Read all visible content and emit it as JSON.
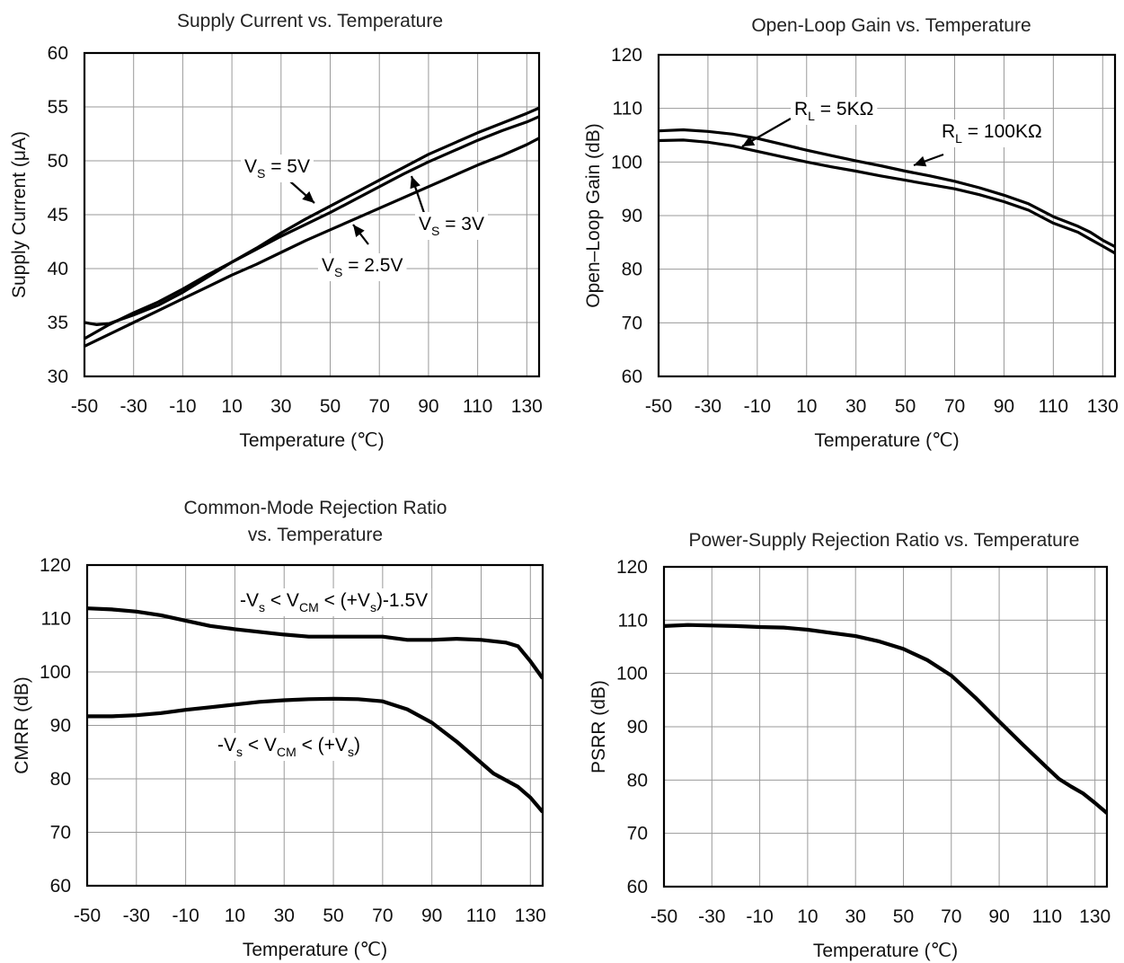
{
  "chart_data": [
    {
      "type": "line",
      "title": "Supply Current vs. Temperature",
      "xlabel": "Temperature (℃)",
      "ylabel": "Supply Current (μA)",
      "xlim": [
        -50,
        135
      ],
      "ylim": [
        30,
        60
      ],
      "xticks": [
        "-50",
        "-30",
        "-10",
        "10",
        "30",
        "50",
        "70",
        "90",
        "110",
        "130"
      ],
      "yticks": [
        "30",
        "35",
        "40",
        "45",
        "50",
        "55",
        "60"
      ],
      "grid": true,
      "series": [
        {
          "name": "VS = 5V",
          "x": [
            -50,
            -45,
            -40,
            -30,
            -20,
            -10,
            0,
            10,
            20,
            30,
            40,
            50,
            60,
            70,
            80,
            90,
            100,
            110,
            120,
            130,
            135
          ],
          "y": [
            35.0,
            34.8,
            34.9,
            35.7,
            36.6,
            37.8,
            39.2,
            40.6,
            41.9,
            43.3,
            44.6,
            45.8,
            47.0,
            48.2,
            49.4,
            50.6,
            51.6,
            52.6,
            53.5,
            54.4,
            54.9
          ]
        },
        {
          "name": "VS = 3V",
          "x": [
            -50,
            -40,
            -30,
            -20,
            -10,
            0,
            10,
            20,
            30,
            40,
            50,
            60,
            70,
            80,
            90,
            100,
            110,
            120,
            130,
            135
          ],
          "y": [
            33.5,
            34.8,
            35.9,
            36.9,
            38.1,
            39.4,
            40.6,
            41.8,
            43.0,
            44.1,
            45.2,
            46.4,
            47.6,
            48.8,
            49.9,
            50.9,
            51.9,
            52.8,
            53.6,
            54.1
          ]
        },
        {
          "name": "VS = 2.5V",
          "x": [
            -50,
            -40,
            -30,
            -20,
            -10,
            0,
            10,
            20,
            30,
            40,
            50,
            60,
            70,
            80,
            90,
            100,
            110,
            120,
            130,
            135
          ],
          "y": [
            32.8,
            33.9,
            35.0,
            36.1,
            37.2,
            38.3,
            39.4,
            40.4,
            41.5,
            42.6,
            43.6,
            44.6,
            45.6,
            46.6,
            47.6,
            48.6,
            49.6,
            50.5,
            51.5,
            52.1
          ]
        }
      ],
      "annotations": [
        {
          "main": "V",
          "sub": "S",
          "rest": " = 5V"
        },
        {
          "main": "V",
          "sub": "S",
          "rest": " = 3V"
        },
        {
          "main": "V",
          "sub": "S",
          "rest": " = 2.5V"
        }
      ]
    },
    {
      "type": "line",
      "title": "Open-Loop Gain vs. Temperature",
      "xlabel": "Temperature (℃)",
      "ylabel": "Open–Loop Gain (dB)",
      "xlim": [
        -50,
        135
      ],
      "ylim": [
        60,
        120
      ],
      "xticks": [
        "-50",
        "-30",
        "-10",
        "10",
        "30",
        "50",
        "70",
        "90",
        "110",
        "130"
      ],
      "yticks": [
        "60",
        "70",
        "80",
        "90",
        "100",
        "110",
        "120"
      ],
      "grid": true,
      "series": [
        {
          "name": "RL = 100KΩ",
          "x": [
            -50,
            -40,
            -30,
            -20,
            -10,
            0,
            10,
            20,
            30,
            40,
            50,
            60,
            70,
            80,
            90,
            100,
            110,
            120,
            125,
            130,
            135
          ],
          "y": [
            105.8,
            106.0,
            105.7,
            105.2,
            104.4,
            103.3,
            102.2,
            101.2,
            100.2,
            99.3,
            98.3,
            97.4,
            96.4,
            95.2,
            93.8,
            92.2,
            89.8,
            88.0,
            86.9,
            85.4,
            84.2
          ]
        },
        {
          "name": "RL = 5KΩ",
          "x": [
            -50,
            -40,
            -30,
            -20,
            -10,
            0,
            10,
            20,
            30,
            40,
            50,
            60,
            70,
            80,
            90,
            100,
            110,
            120,
            125,
            130,
            135
          ],
          "y": [
            104.0,
            104.1,
            103.7,
            103.0,
            102.0,
            101.0,
            100.0,
            99.1,
            98.3,
            97.4,
            96.6,
            95.8,
            95.0,
            93.9,
            92.6,
            91.0,
            88.6,
            86.9,
            85.6,
            84.3,
            83.0
          ]
        }
      ],
      "annotations": [
        {
          "main": "R",
          "sub": "L",
          "rest": " = 5KΩ"
        },
        {
          "main": "R",
          "sub": "L",
          "rest": " = 100KΩ"
        }
      ]
    },
    {
      "type": "line",
      "title": "Common-Mode Rejection Ratio",
      "title2": "vs. Temperature",
      "xlabel": "Temperature (℃)",
      "ylabel": "CMRR (dB)",
      "xlim": [
        -50,
        135
      ],
      "ylim": [
        60,
        120
      ],
      "xticks": [
        "-50",
        "-30",
        "-10",
        "10",
        "30",
        "50",
        "70",
        "90",
        "110",
        "130"
      ],
      "yticks": [
        "60",
        "70",
        "80",
        "90",
        "100",
        "110",
        "120"
      ],
      "grid": true,
      "series": [
        {
          "name": "",
          "x": [
            -50,
            -40,
            -30,
            -20,
            -10,
            0,
            10,
            20,
            30,
            40,
            50,
            60,
            70,
            80,
            90,
            100,
            110,
            120,
            125,
            130,
            135
          ],
          "y": [
            111.9,
            111.7,
            111.3,
            110.6,
            109.6,
            108.6,
            108.0,
            107.5,
            107.0,
            106.6,
            106.6,
            106.6,
            106.6,
            106.0,
            106.0,
            106.2,
            106.0,
            105.5,
            104.8,
            102.0,
            98.8
          ]
        },
        {
          "name": "",
          "x": [
            -50,
            -40,
            -30,
            -20,
            -10,
            0,
            10,
            20,
            30,
            40,
            50,
            60,
            70,
            80,
            90,
            100,
            110,
            115,
            125,
            130,
            135
          ],
          "y": [
            91.7,
            91.7,
            91.9,
            92.3,
            92.9,
            93.4,
            93.9,
            94.4,
            94.7,
            94.9,
            95.0,
            94.9,
            94.5,
            93.0,
            90.5,
            87.0,
            83.0,
            81.0,
            78.5,
            76.5,
            73.8
          ]
        }
      ],
      "annotations": [
        {
          "parts": [
            "-V",
            "s",
            " < V",
            "CM",
            " < (+V",
            "s",
            ")-1.5V"
          ]
        },
        {
          "parts": [
            "-V",
            "s",
            " < V",
            "CM",
            " < (+V",
            "s",
            ")"
          ]
        }
      ]
    },
    {
      "type": "line",
      "title": "Power-Supply Rejection Ratio vs. Temperature",
      "xlabel": "Temperature (℃)",
      "ylabel": "PSRR (dB)",
      "xlim": [
        -50,
        135
      ],
      "ylim": [
        60,
        120
      ],
      "xticks": [
        "-50",
        "-30",
        "-10",
        "10",
        "30",
        "50",
        "70",
        "90",
        "110",
        "130"
      ],
      "yticks": [
        "60",
        "70",
        "80",
        "90",
        "100",
        "110",
        "120"
      ],
      "grid": true,
      "series": [
        {
          "name": "",
          "x": [
            -50,
            -40,
            -30,
            -20,
            -10,
            0,
            10,
            20,
            30,
            40,
            50,
            60,
            70,
            80,
            90,
            100,
            110,
            115,
            120,
            125,
            130,
            135
          ],
          "y": [
            108.9,
            109.1,
            109.0,
            108.9,
            108.7,
            108.6,
            108.2,
            107.6,
            107.0,
            106.0,
            104.6,
            102.5,
            99.6,
            95.5,
            91.0,
            86.6,
            82.3,
            80.2,
            78.8,
            77.5,
            75.7,
            73.8
          ]
        }
      ],
      "annotations": []
    }
  ]
}
